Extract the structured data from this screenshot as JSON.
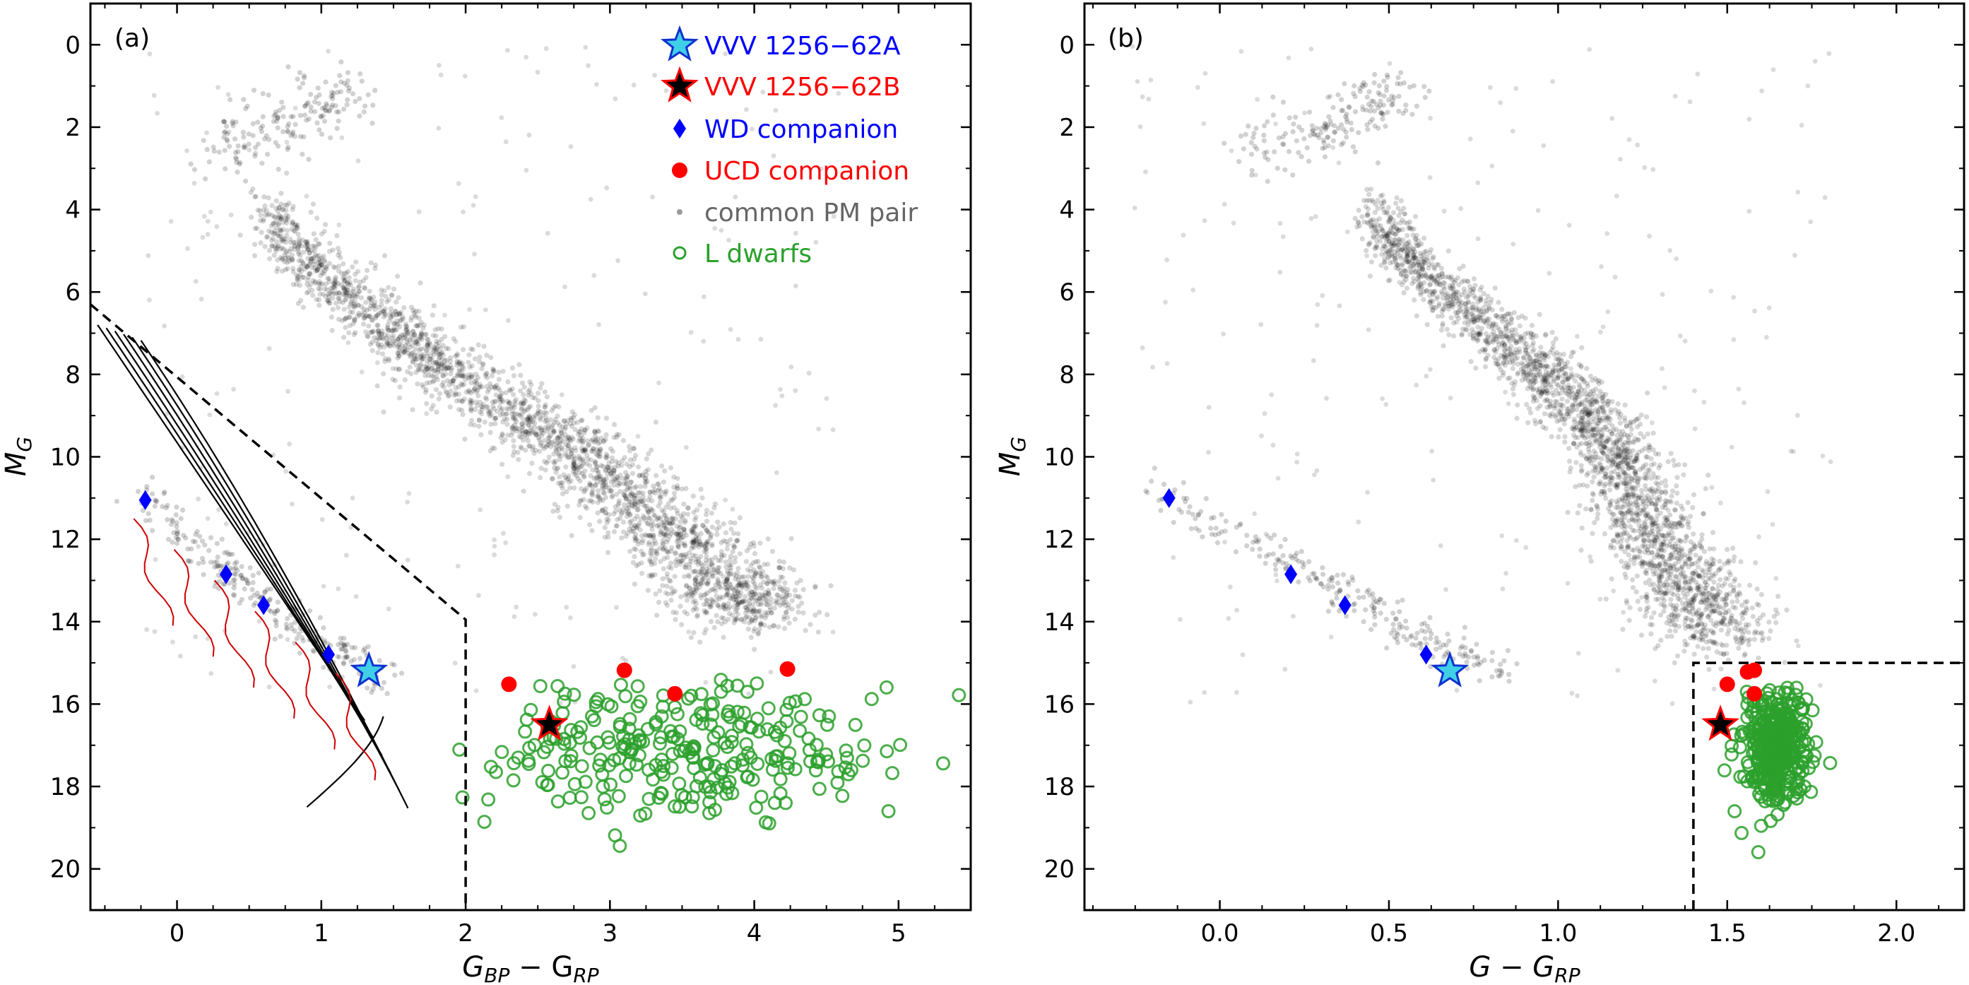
{
  "figure": {
    "panels": [
      {
        "id": "a",
        "panel_label": "(a)",
        "xlabel": {
          "main": "G",
          "sub1": "BP",
          "mid": " − G",
          "sub2": "RP"
        },
        "ylabel": {
          "main": "M",
          "sub": "G"
        }
      },
      {
        "id": "b",
        "panel_label": "(b)",
        "xlabel": {
          "main": "G − G",
          "sub": "RP"
        },
        "ylabel": {
          "main": "M",
          "sub": "G"
        }
      }
    ],
    "legend": [
      {
        "key": "vvvA",
        "label": "VVV 1256−62A",
        "color": "#0000ff",
        "marker": "star",
        "fill": "#3fd0e8",
        "edge": "#1030d0"
      },
      {
        "key": "vvvB",
        "label": "VVV 1256−62B",
        "color": "#ff0000",
        "marker": "star",
        "fill": "#000000",
        "edge": "#ff0000"
      },
      {
        "key": "wd",
        "label": "WD companion",
        "color": "#0000ff",
        "marker": "diamond",
        "fill": "#0000ff"
      },
      {
        "key": "ucd",
        "label": "UCD companion",
        "color": "#ff0000",
        "marker": "circle",
        "fill": "#ff0000"
      },
      {
        "key": "pm",
        "label": "common PM pair",
        "color": "#666666",
        "marker": "dot",
        "fill": "#999999"
      },
      {
        "key": "ld",
        "label": "L dwarfs",
        "color": "#2ca02c",
        "marker": "open-circle",
        "fill": "none",
        "edge": "#2ca02c"
      }
    ]
  },
  "chart_data": [
    {
      "type": "scatter",
      "panel": "a",
      "xlabel": "G_BP − G_RP",
      "ylabel": "M_G",
      "xlim": [
        -0.6,
        5.5
      ],
      "ylim": [
        21,
        -1
      ],
      "xticks": [
        0,
        1,
        2,
        3,
        4,
        5
      ],
      "yticks": [
        0,
        2,
        4,
        6,
        8,
        10,
        12,
        14,
        16,
        18,
        20
      ],
      "series": [
        {
          "name": "VVV 1256−62A",
          "points": [
            [
              1.33,
              15.2
            ]
          ]
        },
        {
          "name": "VVV 1256−62B",
          "points": [
            [
              2.58,
              16.5
            ]
          ]
        },
        {
          "name": "WD companion",
          "points": [
            [
              -0.22,
              11.05
            ],
            [
              0.34,
              12.85
            ],
            [
              0.6,
              13.6
            ],
            [
              1.05,
              14.8
            ]
          ]
        },
        {
          "name": "UCD companion",
          "points": [
            [
              2.3,
              15.52
            ],
            [
              3.1,
              15.18
            ],
            [
              3.45,
              15.75
            ],
            [
              4.23,
              15.15
            ]
          ]
        }
      ],
      "sequences": {
        "main_sequence": [
          [
            0.6,
            4.0
          ],
          [
            1.0,
            5.6
          ],
          [
            1.6,
            7.2
          ],
          [
            2.2,
            8.6
          ],
          [
            2.8,
            10.0
          ],
          [
            3.3,
            11.5
          ],
          [
            3.8,
            13.0
          ],
          [
            4.0,
            13.8
          ]
        ],
        "giant_branch": [
          [
            0.3,
            2.6
          ],
          [
            0.6,
            2.2
          ],
          [
            1.0,
            1.5
          ],
          [
            1.2,
            1.0
          ]
        ],
        "white_dwarf_sequence": [
          [
            -0.3,
            10.8
          ],
          [
            0.2,
            12.4
          ],
          [
            0.6,
            13.5
          ],
          [
            1.0,
            14.5
          ],
          [
            1.5,
            15.5
          ]
        ],
        "ld_cloud_center": [
          [
            3.5,
            17.0
          ]
        ]
      },
      "boundary": [
        [
          -0.6,
          6.3
        ],
        [
          2.0,
          13.95
        ],
        [
          2.0,
          21.0
        ]
      ]
    },
    {
      "type": "scatter",
      "panel": "b",
      "xlabel": "G − G_RP",
      "ylabel": "M_G",
      "xlim": [
        -0.4,
        2.2
      ],
      "ylim": [
        21,
        -1
      ],
      "xticks": [
        0.0,
        0.5,
        1.0,
        1.5,
        2.0
      ],
      "yticks": [
        0,
        2,
        4,
        6,
        8,
        10,
        12,
        14,
        16,
        18,
        20
      ],
      "series": [
        {
          "name": "VVV 1256−62A",
          "points": [
            [
              0.68,
              15.2
            ]
          ]
        },
        {
          "name": "VVV 1256−62B",
          "points": [
            [
              1.48,
              16.5
            ]
          ]
        },
        {
          "name": "WD companion",
          "points": [
            [
              -0.15,
              11.0
            ],
            [
              0.21,
              12.85
            ],
            [
              0.37,
              13.6
            ],
            [
              0.61,
              14.8
            ]
          ]
        },
        {
          "name": "UCD companion",
          "points": [
            [
              1.5,
              15.52
            ],
            [
              1.56,
              15.22
            ],
            [
              1.58,
              15.75
            ],
            [
              1.58,
              15.18
            ]
          ]
        }
      ],
      "sequences": {
        "main_sequence": [
          [
            0.45,
            4.0
          ],
          [
            0.6,
            5.6
          ],
          [
            0.85,
            7.2
          ],
          [
            1.05,
            8.6
          ],
          [
            1.18,
            10.0
          ],
          [
            1.25,
            11.5
          ],
          [
            1.38,
            13.0
          ],
          [
            1.5,
            14.5
          ]
        ],
        "giant_branch": [
          [
            0.1,
            2.6
          ],
          [
            0.3,
            2.2
          ],
          [
            0.45,
            1.5
          ],
          [
            0.55,
            1.0
          ]
        ],
        "white_dwarf_sequence": [
          [
            -0.2,
            10.8
          ],
          [
            0.15,
            12.4
          ],
          [
            0.4,
            13.5
          ],
          [
            0.6,
            14.4
          ],
          [
            0.85,
            15.2
          ]
        ],
        "ld_cloud_center": [
          [
            1.65,
            16.9
          ]
        ]
      },
      "boundary": [
        [
          1.4,
          21.0
        ],
        [
          1.4,
          15.0
        ],
        [
          2.2,
          15.0
        ]
      ]
    }
  ]
}
